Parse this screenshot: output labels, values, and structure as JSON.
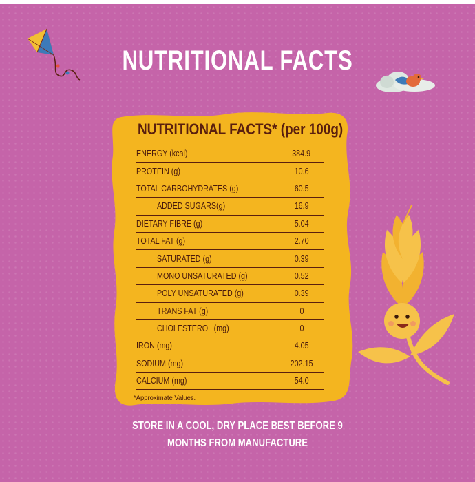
{
  "title": "NUTRITIONAL FACTS",
  "table": {
    "heading": "NUTRITIONAL FACTS* (per 100g)",
    "rows": [
      {
        "name": "ENERGY (kcal)",
        "value": "384.9"
      },
      {
        "name": "PROTEIN (g)",
        "value": "10.6"
      },
      {
        "name": "TOTAL CARBOHYDRATES (g)",
        "value": "60.5"
      },
      {
        "name": "ADDED SUGARS(g)",
        "value": "16.9"
      },
      {
        "name": "DIETARY FIBRE (g)",
        "value": "5.04"
      },
      {
        "name": "TOTAL FAT (g)",
        "value": "2.70"
      },
      {
        "name": "SATURATED (g)",
        "value": "0.39"
      },
      {
        "name": "MONO UNSATURATED (g)",
        "value": "0.52"
      },
      {
        "name": "POLY UNSATURATED (g)",
        "value": "0.39"
      },
      {
        "name": "TRANS FAT (g)",
        "value": "0"
      },
      {
        "name": "CHOLESTEROL (mg)",
        "value": "0"
      },
      {
        "name": "IRON (mg)",
        "value": "4.05"
      },
      {
        "name": "SODIUM (mg)",
        "value": "202.15"
      },
      {
        "name": "CALCIUM (mg)",
        "value": "54.0"
      }
    ]
  },
  "footnote": "*Approximate Values.",
  "storage": {
    "line1": "STORE IN A COOL, DRY PLACE BEST BEFORE 9",
    "line2": "MONTHS FROM MANUFACTURE"
  },
  "icons": [
    "kite-icon",
    "bird-cloud-icon",
    "wheat-mascot-icon"
  ],
  "colors": {
    "background": "#c564a9",
    "panel": "#f4b51f",
    "text_dark": "#5a1f0e",
    "text_light": "#ffffff"
  }
}
